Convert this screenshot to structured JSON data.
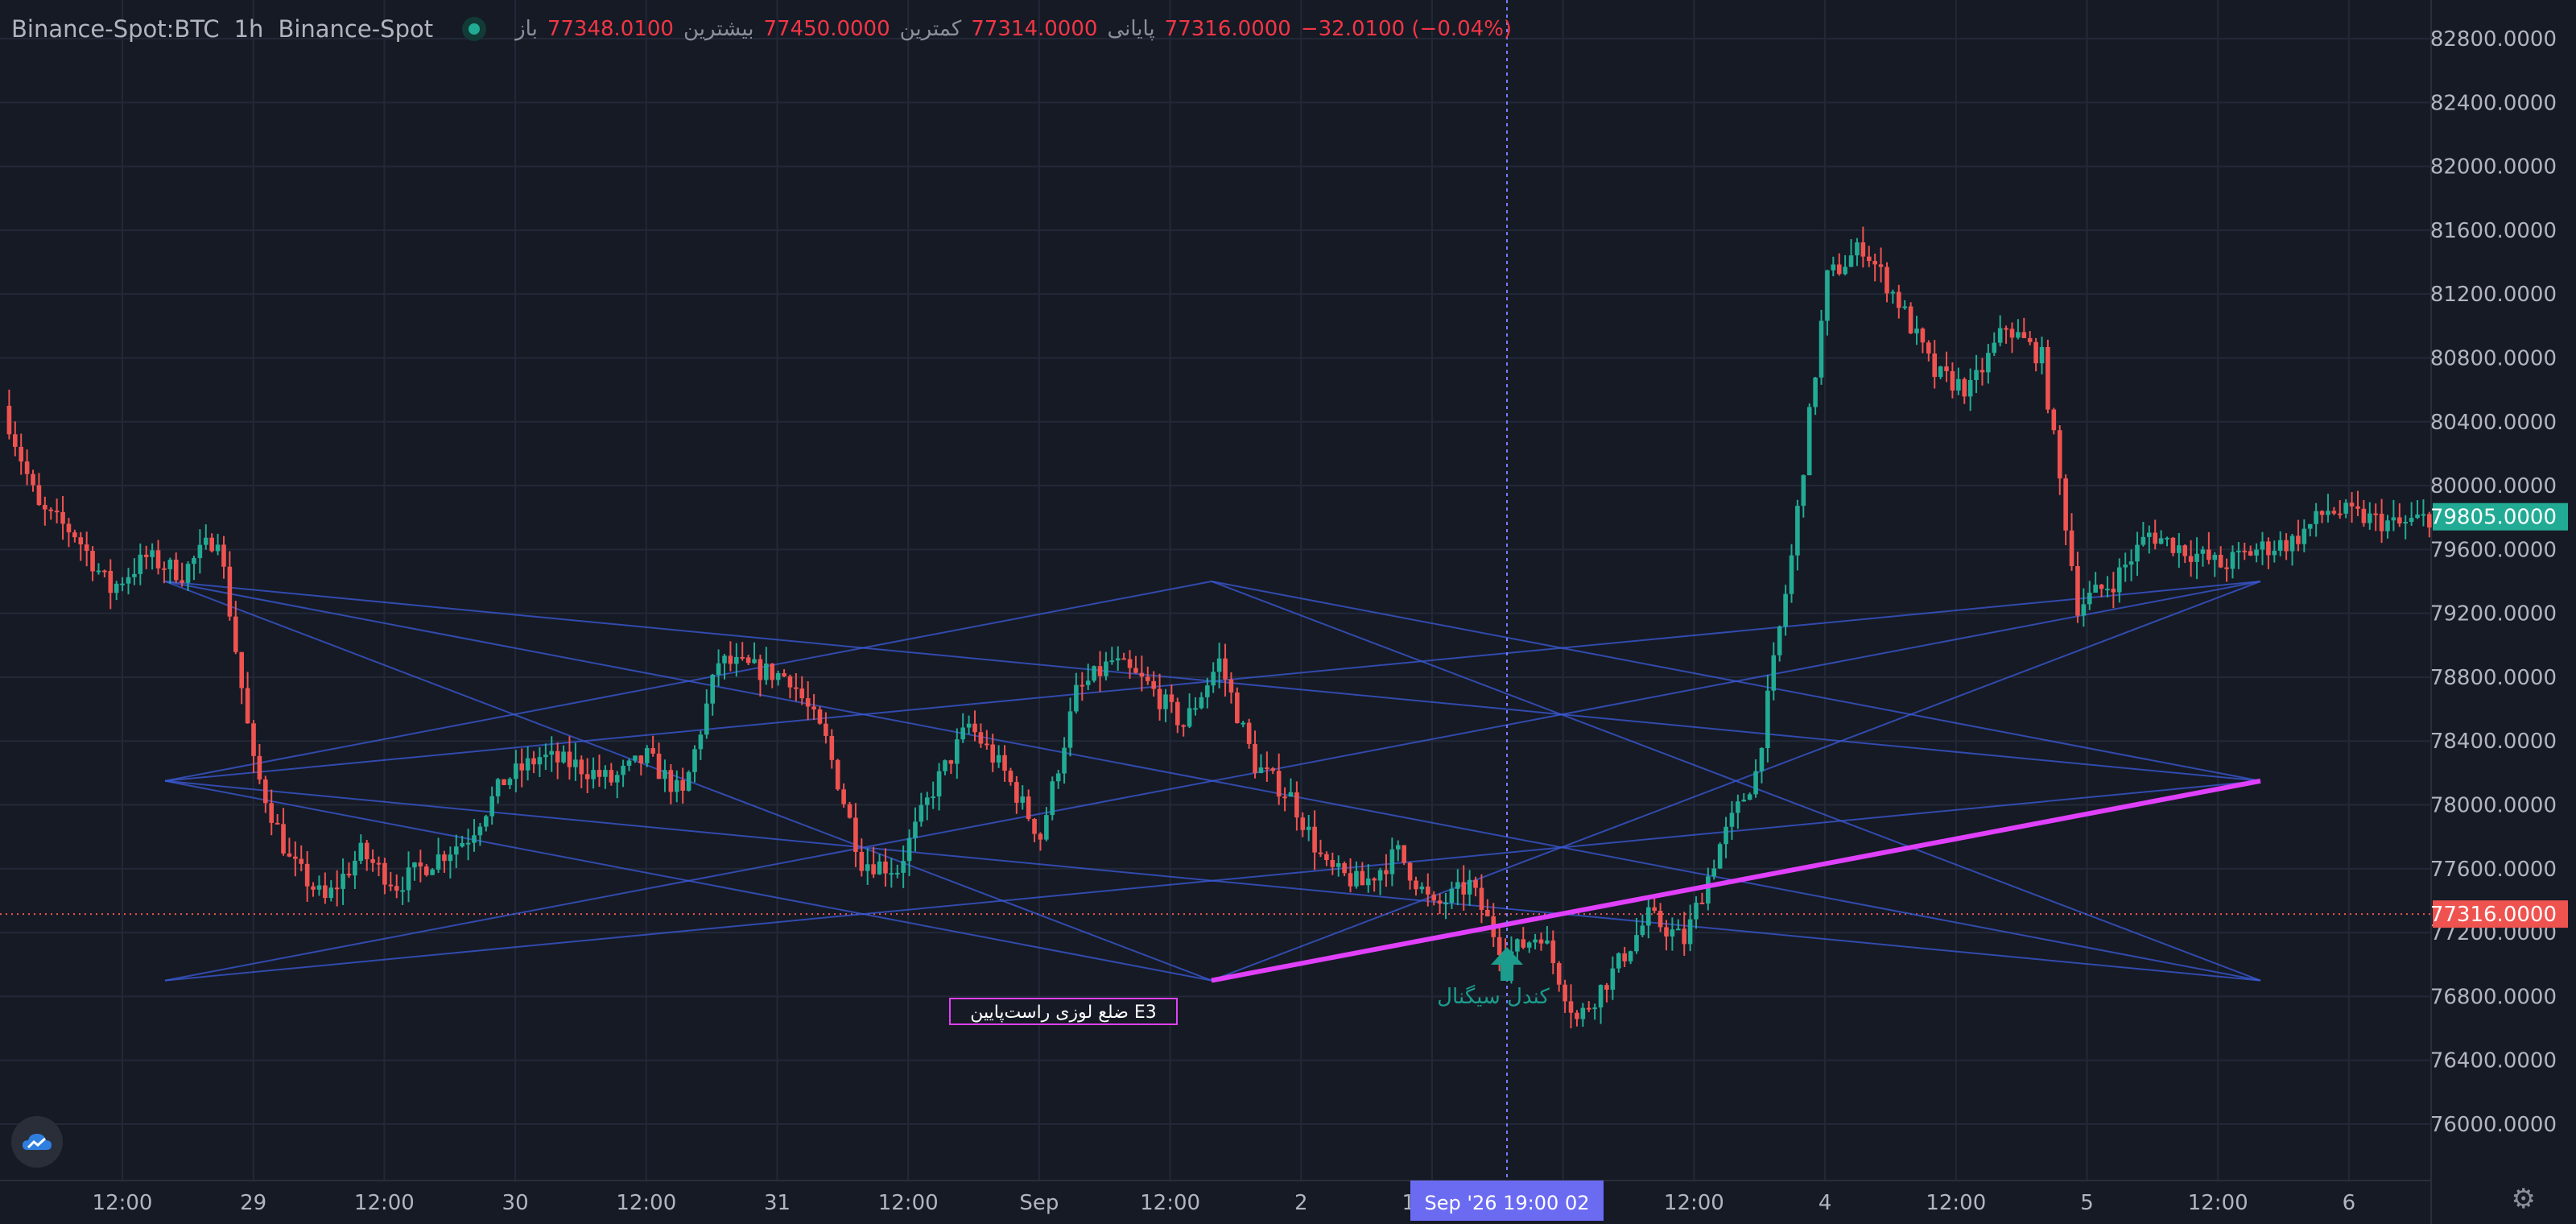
{
  "header": {
    "symbol": "Binance-Spot:BTC",
    "interval": "1h",
    "exchange": "Binance-Spot",
    "ohlc": [
      {
        "label": "باز",
        "value": "77348.0100"
      },
      {
        "label": "بیشترین",
        "value": "77450.0000"
      },
      {
        "label": "کمترین",
        "value": "77314.0000"
      },
      {
        "label": "پایانی",
        "value": "77316.0000"
      }
    ],
    "change": "−32.0100 (−0.04%)"
  },
  "colors": {
    "background": "#161a25",
    "up": "#22ab94",
    "down": "#ef5350",
    "pattern": "#3a5bd9",
    "trendline": "#e040fb",
    "crosshair": "#7b7bff"
  },
  "chart_data": {
    "type": "candlestick",
    "y_axis_labels": [
      "82800.0000",
      "82400.0000",
      "82000.0000",
      "81600.0000",
      "81200.0000",
      "80800.0000",
      "80400.0000",
      "80000.0000",
      "79600.0000",
      "79200.0000",
      "78800.0000",
      "78400.0000",
      "78000.0000",
      "77600.0000",
      "77200.0000",
      "76800.0000",
      "76400.0000",
      "76000.0000"
    ],
    "x_axis_labels": [
      "12:00",
      "29",
      "12:00",
      "30",
      "12:00",
      "31",
      "12:00",
      "Sep",
      "12:00",
      "2",
      "12:00",
      "3",
      "12:00",
      "4",
      "12:00",
      "5",
      "12:00",
      "6"
    ],
    "last_price_label": "79805.0000",
    "crosshair_price_label": "77316.0000",
    "crosshair_time_label": "Sep '26   19:00 02",
    "close_path": [
      [
        0,
        80500
      ],
      [
        6,
        79850
      ],
      [
        12,
        79700
      ],
      [
        18,
        79350
      ],
      [
        24,
        79550
      ],
      [
        30,
        79450
      ],
      [
        36,
        79700
      ],
      [
        42,
        78250
      ],
      [
        48,
        77650
      ],
      [
        54,
        77400
      ],
      [
        60,
        77700
      ],
      [
        66,
        77500
      ],
      [
        72,
        77650
      ],
      [
        78,
        77800
      ],
      [
        84,
        78150
      ],
      [
        90,
        78300
      ],
      [
        96,
        78250
      ],
      [
        102,
        78150
      ],
      [
        108,
        78300
      ],
      [
        114,
        78050
      ],
      [
        120,
        78900
      ],
      [
        126,
        78850
      ],
      [
        132,
        78800
      ],
      [
        138,
        78400
      ],
      [
        144,
        77650
      ],
      [
        150,
        77600
      ],
      [
        156,
        78100
      ],
      [
        162,
        78500
      ],
      [
        168,
        78200
      ],
      [
        174,
        77800
      ],
      [
        180,
        78700
      ],
      [
        186,
        78900
      ],
      [
        192,
        78750
      ],
      [
        198,
        78500
      ],
      [
        204,
        78900
      ],
      [
        210,
        78250
      ],
      [
        216,
        78050
      ],
      [
        222,
        77600
      ],
      [
        228,
        77500
      ],
      [
        234,
        77700
      ],
      [
        240,
        77350
      ],
      [
        246,
        77500
      ],
      [
        252,
        77050
      ],
      [
        258,
        77200
      ],
      [
        264,
        76650
      ],
      [
        270,
        76950
      ],
      [
        276,
        77300
      ],
      [
        282,
        77150
      ],
      [
        288,
        77750
      ],
      [
        294,
        78200
      ],
      [
        300,
        79550
      ],
      [
        306,
        81300
      ],
      [
        312,
        81500
      ],
      [
        318,
        81150
      ],
      [
        324,
        80700
      ],
      [
        330,
        80600
      ],
      [
        336,
        81000
      ],
      [
        342,
        80800
      ],
      [
        348,
        79250
      ],
      [
        354,
        79400
      ],
      [
        360,
        79700
      ],
      [
        366,
        79600
      ],
      [
        372,
        79500
      ],
      [
        378,
        79600
      ],
      [
        384,
        79650
      ],
      [
        390,
        79850
      ],
      [
        396,
        79800
      ],
      [
        402,
        79750
      ],
      [
        407,
        79805
      ]
    ],
    "annotations": [
      {
        "text": "ضلع لوزی راست‌پایین E3"
      },
      {
        "text": "کندل سیگنال"
      }
    ]
  }
}
